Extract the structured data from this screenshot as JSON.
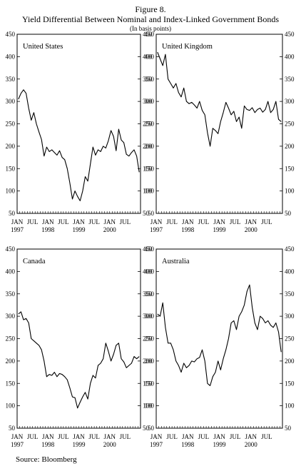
{
  "figure": {
    "number": "Figure 8.",
    "title": "Yield Differential Between Nominal and Index-Linked Government Bonds",
    "unit": "(In basis points)",
    "source": "Source: Bloomberg"
  },
  "chart_data": [
    {
      "type": "line",
      "title": "United States",
      "ylim": [
        50,
        450
      ],
      "yticks": [
        50,
        100,
        150,
        200,
        250,
        300,
        350,
        400,
        450
      ],
      "xlim": [
        "1997-01",
        "2000-12"
      ],
      "xticks": [
        {
          "month": "JAN",
          "year": "1997"
        },
        {
          "month": "JUL",
          "year": ""
        },
        {
          "month": "JAN",
          "year": "1998"
        },
        {
          "month": "JUL",
          "year": ""
        },
        {
          "month": "JAN",
          "year": "1999"
        },
        {
          "month": "JUL",
          "year": ""
        },
        {
          "month": "JAN",
          "year": "2000"
        },
        {
          "month": "JUL",
          "year": ""
        }
      ],
      "x": [
        "1997-01",
        "1997-02",
        "1997-03",
        "1997-04",
        "1997-05",
        "1997-06",
        "1997-07",
        "1997-08",
        "1997-09",
        "1997-10",
        "1997-11",
        "1997-12",
        "1998-01",
        "1998-02",
        "1998-03",
        "1998-04",
        "1998-05",
        "1998-06",
        "1998-07",
        "1998-08",
        "1998-09",
        "1998-10",
        "1998-11",
        "1998-12",
        "1999-01",
        "1999-02",
        "1999-03",
        "1999-04",
        "1999-05",
        "1999-06",
        "1999-07",
        "1999-08",
        "1999-09",
        "1999-10",
        "1999-11",
        "1999-12",
        "2000-01",
        "2000-02",
        "2000-03",
        "2000-04",
        "2000-05",
        "2000-06",
        "2000-07",
        "2000-08",
        "2000-09",
        "2000-10",
        "2000-11",
        "2000-12"
      ],
      "series": [
        {
          "values": [
            305,
            318,
            326,
            318,
            285,
            258,
            275,
            250,
            232,
            215,
            178,
            198,
            188,
            192,
            186,
            180,
            190,
            175,
            170,
            150,
            118,
            82,
            100,
            88,
            78,
            100,
            132,
            122,
            160,
            198,
            180,
            192,
            188,
            200,
            196,
            212,
            235,
            222,
            190,
            238,
            214,
            208,
            182,
            178,
            186,
            192,
            178,
            142
          ]
        }
      ]
    },
    {
      "type": "line",
      "title": "United Kingdom",
      "ylim": [
        50,
        450
      ],
      "yticks": [
        50,
        100,
        150,
        200,
        250,
        300,
        350,
        400,
        450
      ],
      "xlim": [
        "1997-01",
        "2000-12"
      ],
      "xticks": [
        {
          "month": "JAN",
          "year": "1997"
        },
        {
          "month": "JUL",
          "year": ""
        },
        {
          "month": "JAN",
          "year": "1998"
        },
        {
          "month": "JUL",
          "year": ""
        },
        {
          "month": "JAN",
          "year": "1999"
        },
        {
          "month": "JUL",
          "year": ""
        },
        {
          "month": "JAN",
          "year": "2000"
        },
        {
          "month": "JUL",
          "year": ""
        }
      ],
      "x": [
        "1997-01",
        "1997-02",
        "1997-03",
        "1997-04",
        "1997-05",
        "1997-06",
        "1997-07",
        "1997-08",
        "1997-09",
        "1997-10",
        "1997-11",
        "1997-12",
        "1998-01",
        "1998-02",
        "1998-03",
        "1998-04",
        "1998-05",
        "1998-06",
        "1998-07",
        "1998-08",
        "1998-09",
        "1998-10",
        "1998-11",
        "1998-12",
        "1999-01",
        "1999-02",
        "1999-03",
        "1999-04",
        "1999-05",
        "1999-06",
        "1999-07",
        "1999-08",
        "1999-09",
        "1999-10",
        "1999-11",
        "1999-12",
        "2000-01",
        "2000-02",
        "2000-03",
        "2000-04",
        "2000-05",
        "2000-06",
        "2000-07",
        "2000-08",
        "2000-09",
        "2000-10",
        "2000-11",
        "2000-12"
      ],
      "series": [
        {
          "values": [
            410,
            395,
            380,
            405,
            350,
            340,
            330,
            340,
            320,
            310,
            330,
            300,
            295,
            298,
            292,
            285,
            300,
            280,
            270,
            230,
            200,
            240,
            235,
            228,
            255,
            275,
            298,
            285,
            270,
            278,
            255,
            265,
            240,
            290,
            282,
            280,
            286,
            275,
            282,
            285,
            276,
            282,
            300,
            275,
            282,
            300,
            260,
            255
          ]
        }
      ]
    },
    {
      "type": "line",
      "title": "Canada",
      "ylim": [
        50,
        450
      ],
      "yticks": [
        50,
        100,
        150,
        200,
        250,
        300,
        350,
        400,
        450
      ],
      "xlim": [
        "1997-01",
        "2000-12"
      ],
      "xticks": [
        {
          "month": "JAN",
          "year": "1997"
        },
        {
          "month": "JUL",
          "year": ""
        },
        {
          "month": "JAN",
          "year": "1998"
        },
        {
          "month": "JUL",
          "year": ""
        },
        {
          "month": "JAN",
          "year": "1999"
        },
        {
          "month": "JUL",
          "year": ""
        },
        {
          "month": "JAN",
          "year": "2000"
        },
        {
          "month": "JUL",
          "year": ""
        }
      ],
      "x": [
        "1997-01",
        "1997-02",
        "1997-03",
        "1997-04",
        "1997-05",
        "1997-06",
        "1997-07",
        "1997-08",
        "1997-09",
        "1997-10",
        "1997-11",
        "1997-12",
        "1998-01",
        "1998-02",
        "1998-03",
        "1998-04",
        "1998-05",
        "1998-06",
        "1998-07",
        "1998-08",
        "1998-09",
        "1998-10",
        "1998-11",
        "1998-12",
        "1999-01",
        "1999-02",
        "1999-03",
        "1999-04",
        "1999-05",
        "1999-06",
        "1999-07",
        "1999-08",
        "1999-09",
        "1999-10",
        "1999-11",
        "1999-12",
        "2000-01",
        "2000-02",
        "2000-03",
        "2000-04",
        "2000-05",
        "2000-06",
        "2000-07",
        "2000-08",
        "2000-09",
        "2000-10",
        "2000-11",
        "2000-12"
      ],
      "series": [
        {
          "values": [
            305,
            310,
            292,
            295,
            285,
            250,
            245,
            240,
            235,
            225,
            200,
            165,
            170,
            168,
            175,
            165,
            172,
            170,
            165,
            158,
            140,
            120,
            118,
            95,
            108,
            120,
            130,
            115,
            150,
            168,
            162,
            190,
            195,
            205,
            240,
            222,
            200,
            215,
            235,
            240,
            205,
            198,
            185,
            190,
            195,
            210,
            205,
            210
          ]
        }
      ]
    },
    {
      "type": "line",
      "title": "Australia",
      "ylim": [
        50,
        450
      ],
      "yticks": [
        50,
        100,
        150,
        200,
        250,
        300,
        350,
        400,
        450
      ],
      "xlim": [
        "1997-01",
        "2000-12"
      ],
      "xticks": [
        {
          "month": "JAN",
          "year": "1997"
        },
        {
          "month": "JUL",
          "year": ""
        },
        {
          "month": "JAN",
          "year": "1998"
        },
        {
          "month": "JUL",
          "year": ""
        },
        {
          "month": "JAN",
          "year": "1999"
        },
        {
          "month": "JUL",
          "year": ""
        },
        {
          "month": "JAN",
          "year": "2000"
        },
        {
          "month": "JUL",
          "year": ""
        }
      ],
      "x": [
        "1997-01",
        "1997-02",
        "1997-03",
        "1997-04",
        "1997-05",
        "1997-06",
        "1997-07",
        "1997-08",
        "1997-09",
        "1997-10",
        "1997-11",
        "1997-12",
        "1998-01",
        "1998-02",
        "1998-03",
        "1998-04",
        "1998-05",
        "1998-06",
        "1998-07",
        "1998-08",
        "1998-09",
        "1998-10",
        "1998-11",
        "1998-12",
        "1999-01",
        "1999-02",
        "1999-03",
        "1999-04",
        "1999-05",
        "1999-06",
        "1999-07",
        "1999-08",
        "1999-09",
        "1999-10",
        "1999-11",
        "1999-12",
        "2000-01",
        "2000-02",
        "2000-03",
        "2000-04",
        "2000-05",
        "2000-06",
        "2000-07",
        "2000-08",
        "2000-09",
        "2000-10",
        "2000-11",
        "2000-12"
      ],
      "series": [
        {
          "values": [
            305,
            300,
            330,
            275,
            240,
            240,
            225,
            200,
            190,
            175,
            195,
            185,
            190,
            200,
            198,
            205,
            208,
            225,
            200,
            150,
            145,
            165,
            175,
            200,
            180,
            205,
            225,
            250,
            285,
            290,
            270,
            300,
            310,
            325,
            355,
            370,
            320,
            285,
            270,
            300,
            295,
            285,
            290,
            280,
            275,
            285,
            265,
            220
          ]
        }
      ]
    }
  ]
}
